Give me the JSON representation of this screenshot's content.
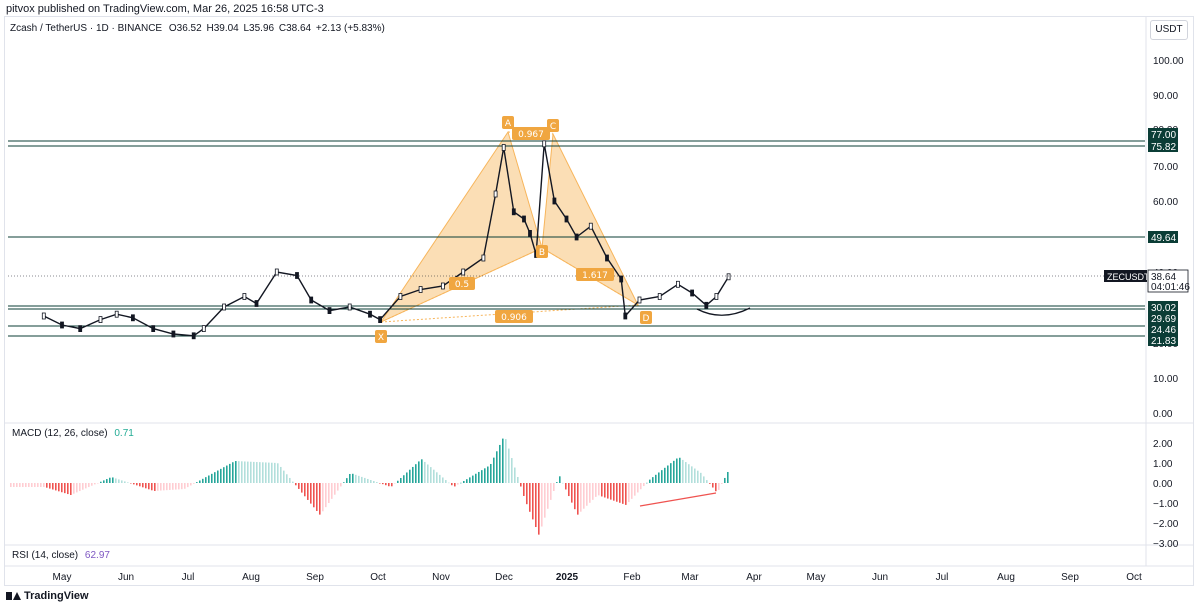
{
  "header": {
    "published": "pitvox published on TradingView.com, Mar 26, 2025 16:58 UTC-3"
  },
  "legend": {
    "symbol": "Zcash / TetherUS · 1D · BINANCE",
    "open": "O36.52",
    "high": "H39.04",
    "low": "L35.96",
    "close": "C38.64",
    "change": "+2.13 (+5.83%)"
  },
  "currency_button": "USDT",
  "macd": {
    "label": "MACD (12, 26, close)",
    "value": "0.71"
  },
  "rsi": {
    "label": "RSI (14, close)",
    "value": "62.97"
  },
  "footer": {
    "brand": "TradingView"
  },
  "colors": {
    "up": "#26a69a",
    "down": "#ef5350",
    "pattern_fill": "#f7b55b",
    "pattern_label": "#f0a640",
    "level_line": "#0b3d36",
    "rsi_value": "#7e57c2",
    "macd_value": "#22ab94"
  },
  "chart_data": [
    {
      "type": "candlestick",
      "title": "Zcash / TetherUS · 1D · BINANCE",
      "price_axis": {
        "ticks": [
          "100.00",
          "90.00",
          "80.00",
          "70.00",
          "60.00",
          "50.00",
          "40.00",
          "30.00",
          "20.00",
          "10.00",
          "0.00"
        ],
        "scale": "log"
      },
      "time_axis": {
        "ticks": [
          "May",
          "Jun",
          "Jul",
          "Aug",
          "Sep",
          "Oct",
          "Nov",
          "Dec",
          "2025",
          "Feb",
          "Mar",
          "Apr",
          "May",
          "Jun",
          "Jul",
          "Aug",
          "Sep",
          "Oct"
        ]
      },
      "close_series": {
        "dates": [
          "2024-04-22",
          "2024-05-01",
          "2024-05-10",
          "2024-05-20",
          "2024-05-28",
          "2024-06-05",
          "2024-06-15",
          "2024-06-25",
          "2024-07-05",
          "2024-07-10",
          "2024-07-20",
          "2024-07-30",
          "2024-08-05",
          "2024-08-15",
          "2024-08-25",
          "2024-09-01",
          "2024-09-10",
          "2024-09-20",
          "2024-09-30",
          "2024-10-05",
          "2024-10-15",
          "2024-10-25",
          "2024-11-05",
          "2024-11-15",
          "2024-11-25",
          "2024-12-01",
          "2024-12-05",
          "2024-12-10",
          "2024-12-15",
          "2024-12-18",
          "2024-12-21",
          "2024-12-25",
          "2024-12-30",
          "2025-01-05",
          "2025-01-10",
          "2025-01-17",
          "2025-01-25",
          "2025-02-01",
          "2025-02-03",
          "2025-02-10",
          "2025-02-20",
          "2025-03-01",
          "2025-03-08",
          "2025-03-15",
          "2025-03-20",
          "2025-03-26"
        ],
        "close": [
          27.5,
          25.0,
          24.0,
          26.5,
          28.0,
          27.0,
          24.0,
          22.5,
          22.0,
          24.0,
          30.0,
          33.0,
          31.0,
          40.0,
          39.0,
          32.0,
          29.0,
          30.0,
          28.0,
          26.5,
          33.0,
          35.0,
          36.0,
          40.0,
          44.0,
          62.0,
          75.0,
          57.0,
          55.0,
          51.0,
          45.0,
          76.0,
          60.0,
          55.0,
          50.0,
          53.0,
          44.0,
          38.0,
          27.5,
          32.0,
          33.0,
          36.5,
          34.0,
          30.5,
          33.0,
          38.64
        ]
      },
      "pattern": {
        "points": [
          "X",
          "A",
          "B",
          "C",
          "D"
        ],
        "ratios": [
          "0.967",
          "0.5",
          "1.617",
          "0.906"
        ]
      },
      "levels": [
        {
          "price": 77.0,
          "label": "77.00"
        },
        {
          "price": 75.82,
          "label": "75.82"
        },
        {
          "price": 49.64,
          "label": "49.64"
        },
        {
          "price": 30.02,
          "label": "30.02"
        },
        {
          "price": 29.69,
          "label": "29.69"
        },
        {
          "price": 24.46,
          "label": "24.46"
        },
        {
          "price": 21.83,
          "label": "21.83"
        }
      ],
      "last_price": {
        "symbol": "ZECUSDT",
        "price": "38.64",
        "countdown": "04:01:46"
      }
    },
    {
      "type": "bar",
      "title": "MACD (12, 26, close)",
      "y_ticks": [
        "2.00",
        "1.00",
        "0.00",
        "−1.00",
        "−2.00",
        "−3.00"
      ],
      "histogram": {
        "dates": [
          "2024-04-22",
          "2024-05-05",
          "2024-05-25",
          "2024-06-15",
          "2024-06-30",
          "2024-07-25",
          "2024-08-15",
          "2024-09-05",
          "2024-09-20",
          "2024-10-10",
          "2024-10-25",
          "2024-11-10",
          "2024-11-28",
          "2024-12-05",
          "2024-12-15",
          "2024-12-22",
          "2025-01-01",
          "2025-01-10",
          "2025-01-20",
          "2025-02-03",
          "2025-02-15",
          "2025-03-01",
          "2025-03-12",
          "2025-03-20",
          "2025-03-26"
        ],
        "values": [
          -0.2,
          -0.6,
          0.3,
          -0.4,
          -0.3,
          1.1,
          1.0,
          -1.6,
          0.5,
          -0.2,
          1.2,
          -0.2,
          0.9,
          2.4,
          -0.8,
          -2.6,
          0.4,
          -1.6,
          -0.6,
          -1.1,
          0.2,
          1.3,
          0.5,
          -0.5,
          0.71
        ]
      }
    }
  ]
}
